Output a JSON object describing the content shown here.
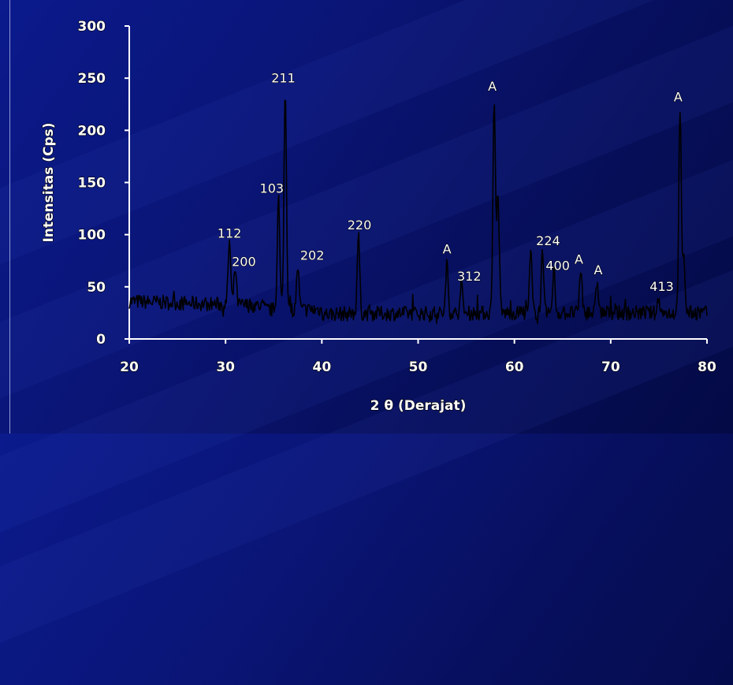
{
  "chart_data": {
    "type": "line",
    "xlabel": "2 θ (Derajat)",
    "ylabel": "Intensitas (Cps)",
    "xlim": [
      20,
      80
    ],
    "ylim": [
      0,
      300
    ],
    "x_ticks": [
      "20",
      "30",
      "40",
      "50",
      "60",
      "70",
      "80"
    ],
    "y_ticks": [
      "0",
      "50",
      "100",
      "150",
      "200",
      "250",
      "300"
    ],
    "grid": false,
    "colors": {
      "line": "#000000",
      "text": "#ffffff",
      "axis": "#ffffff"
    },
    "peaks": [
      {
        "x": 30.4,
        "y": 95
      },
      {
        "x": 31.0,
        "y": 68
      },
      {
        "x": 35.5,
        "y": 135
      },
      {
        "x": 36.2,
        "y": 240
      },
      {
        "x": 37.5,
        "y": 70
      },
      {
        "x": 43.8,
        "y": 100
      },
      {
        "x": 53.0,
        "y": 72
      },
      {
        "x": 54.5,
        "y": 52
      },
      {
        "x": 57.9,
        "y": 232
      },
      {
        "x": 58.3,
        "y": 140
      },
      {
        "x": 61.7,
        "y": 83
      },
      {
        "x": 62.9,
        "y": 80
      },
      {
        "x": 64.1,
        "y": 65
      },
      {
        "x": 66.9,
        "y": 68
      },
      {
        "x": 68.6,
        "y": 55
      },
      {
        "x": 75.0,
        "y": 40
      },
      {
        "x": 77.2,
        "y": 222
      },
      {
        "x": 77.6,
        "y": 75
      }
    ],
    "annotations": [
      {
        "text": "112",
        "x": 30.4,
        "y": 97
      },
      {
        "text": "200",
        "x": 31.9,
        "y": 70
      },
      {
        "text": "103",
        "x": 34.8,
        "y": 140
      },
      {
        "text": "211",
        "x": 36.0,
        "y": 246
      },
      {
        "text": "202",
        "x": 39.0,
        "y": 76
      },
      {
        "text": "220",
        "x": 43.9,
        "y": 105
      },
      {
        "text": "A",
        "x": 53.0,
        "y": 82
      },
      {
        "text": "312",
        "x": 55.3,
        "y": 56
      },
      {
        "text": "A",
        "x": 57.7,
        "y": 238
      },
      {
        "text": "224",
        "x": 63.5,
        "y": 90
      },
      {
        "text": "400",
        "x": 64.5,
        "y": 66
      },
      {
        "text": "A",
        "x": 66.7,
        "y": 72
      },
      {
        "text": "A",
        "x": 68.7,
        "y": 62
      },
      {
        "text": "413",
        "x": 75.3,
        "y": 46
      },
      {
        "text": "A",
        "x": 77.0,
        "y": 228
      }
    ]
  }
}
